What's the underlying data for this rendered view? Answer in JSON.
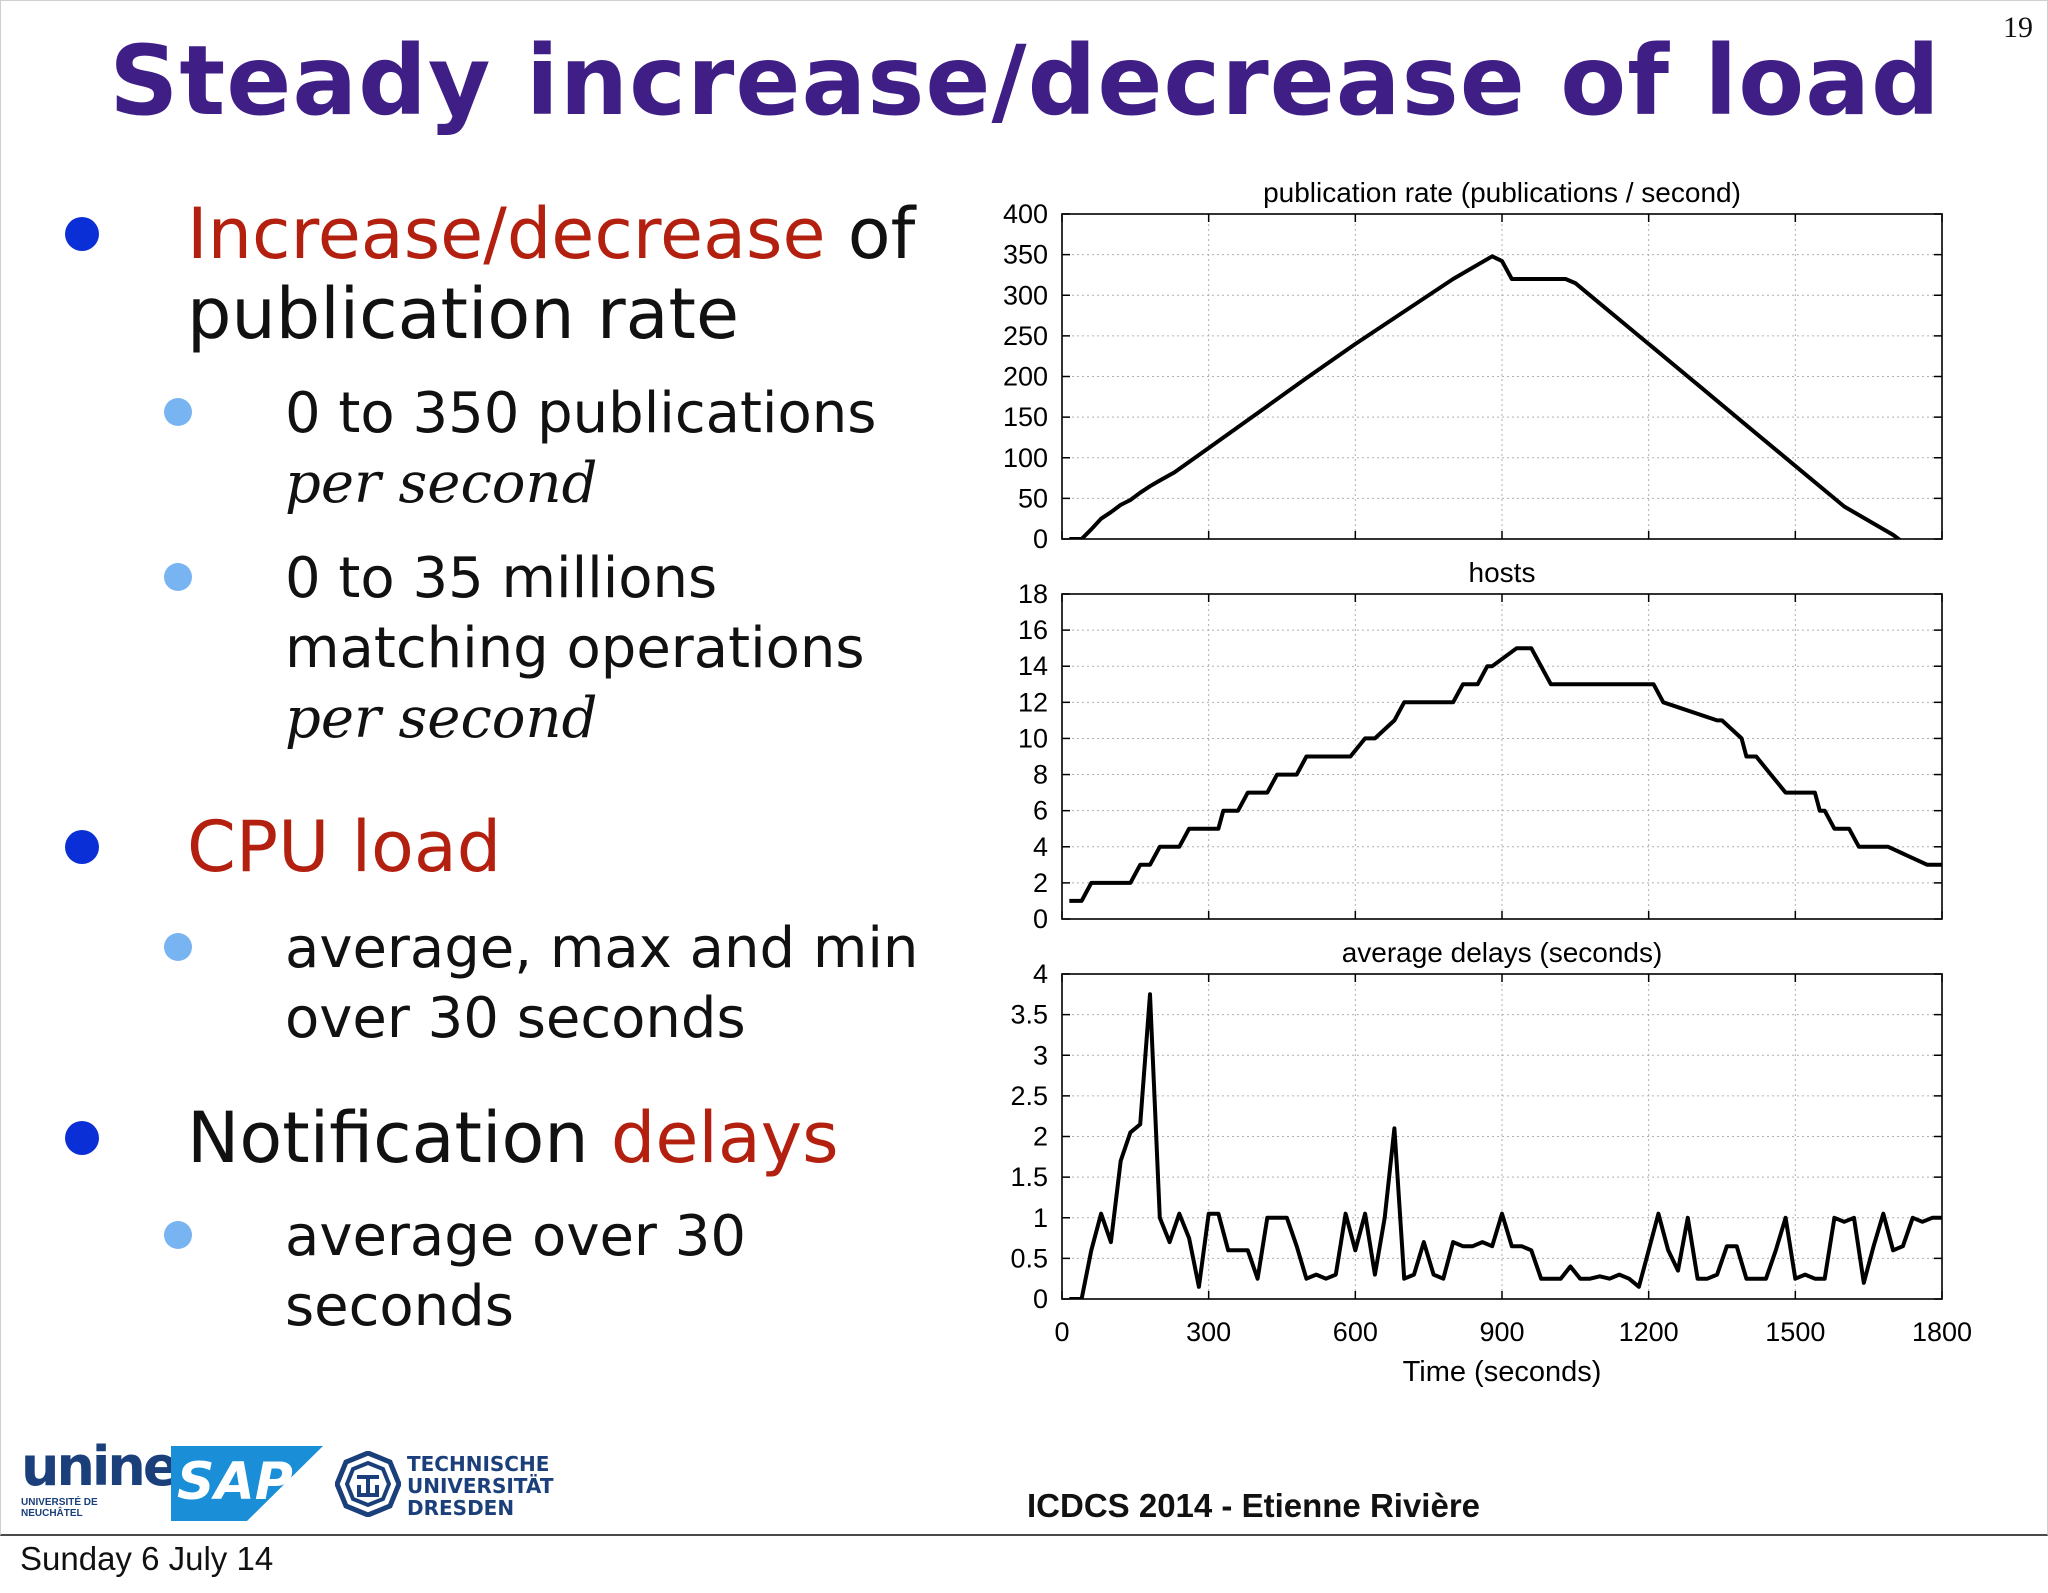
{
  "slide": {
    "number": "19",
    "title": "Steady increase/decrease of load",
    "footer": "ICDCS 2014 - Etienne Rivière",
    "date": "Sunday 6 July 14"
  },
  "bullets": {
    "b1_red": "Increase/decrease",
    "b1_rest": " of",
    "b1_line2": "publication rate",
    "s1_line1": "0 to 350 publications",
    "s1_line2": "per second",
    "s2_line1": "0 to 35 millions",
    "s2_line2": "matching operations",
    "s2_line3": "per second",
    "b2_red": "CPU load",
    "s3_line1": "average, max and min",
    "s3_line2": "over 30 seconds",
    "b3_black": "Notification ",
    "b3_red": "delays",
    "s4_line1": "average over 30",
    "s4_line2": "seconds"
  },
  "logos": {
    "unine": "unine",
    "unine_sub1": "UNIVERSITÉ DE",
    "unine_sub2": "NEUCHÂTEL",
    "sap": "SAP",
    "tud1": "TECHNISCHE",
    "tud2": "UNIVERSITÄT",
    "tud3": "DRESDEN"
  },
  "colors": {
    "title": "#3f1f86",
    "highlight": "#b3200f",
    "bullet1": "#0b2fd6",
    "bullet2": "#78b3f2",
    "sap": "#1a8fd8",
    "unine": "#1a3f7a"
  },
  "chart_data": [
    {
      "type": "line",
      "title": "publication rate (publications / second)",
      "xlabel": "",
      "ylabel": "",
      "xlim": [
        0,
        1800
      ],
      "ylim": [
        0,
        400
      ],
      "yticks": [
        "0",
        "50",
        "100",
        "150",
        "200",
        "250",
        "300",
        "350",
        "400"
      ],
      "xticks_shown": false,
      "grid": true,
      "x": [
        15,
        40,
        60,
        80,
        100,
        120,
        140,
        160,
        180,
        200,
        230,
        300,
        400,
        500,
        600,
        700,
        800,
        880,
        900,
        920,
        960,
        1000,
        1030,
        1050,
        1100,
        1200,
        1300,
        1400,
        1500,
        1600,
        1700,
        1800
      ],
      "y": [
        0,
        0,
        12,
        25,
        33,
        42,
        48,
        57,
        65,
        72,
        82,
        112,
        155,
        198,
        240,
        280,
        320,
        348,
        342,
        320,
        320,
        320,
        320,
        315,
        290,
        240,
        190,
        140,
        90,
        40,
        5,
        -40
      ]
    },
    {
      "type": "line",
      "title": "hosts",
      "xlabel": "",
      "ylabel": "",
      "xlim": [
        0,
        1800
      ],
      "ylim": [
        0,
        18
      ],
      "yticks": [
        "0",
        "2",
        "4",
        "6",
        "8",
        "10",
        "12",
        "14",
        "16",
        "18"
      ],
      "xticks_shown": false,
      "grid": true,
      "x": [
        15,
        40,
        60,
        140,
        160,
        180,
        200,
        240,
        260,
        320,
        330,
        360,
        380,
        420,
        440,
        480,
        500,
        520,
        580,
        590,
        620,
        640,
        680,
        700,
        720,
        790,
        800,
        820,
        850,
        870,
        880,
        930,
        960,
        1000,
        1050,
        1210,
        1230,
        1340,
        1350,
        1390,
        1400,
        1420,
        1450,
        1480,
        1500,
        1540,
        1550,
        1560,
        1580,
        1610,
        1630,
        1660,
        1690,
        1770,
        1780,
        1800
      ],
      "y": [
        1,
        1,
        2,
        2,
        3,
        3,
        4,
        4,
        5,
        5,
        6,
        6,
        7,
        7,
        8,
        8,
        9,
        9,
        9,
        9,
        10,
        10,
        11,
        12,
        12,
        12,
        12,
        13,
        13,
        14,
        14,
        15,
        15,
        13,
        13,
        13,
        12,
        11,
        11,
        10,
        9,
        9,
        8,
        7,
        7,
        7,
        6,
        6,
        5,
        5,
        4,
        4,
        4,
        3,
        3,
        3
      ]
    },
    {
      "type": "line",
      "title": "average delays (seconds)",
      "xlabel": "Time (seconds)",
      "ylabel": "",
      "xlim": [
        0,
        1800
      ],
      "ylim": [
        0,
        4
      ],
      "yticks": [
        "0",
        "0.5",
        "1",
        "1.5",
        "2",
        "2.5",
        "3",
        "3.5",
        "4"
      ],
      "xticks": [
        "0",
        "300",
        "600",
        "900",
        "1200",
        "1500",
        "1800"
      ],
      "grid": true,
      "x": [
        15,
        40,
        60,
        80,
        100,
        120,
        140,
        160,
        180,
        200,
        220,
        240,
        260,
        280,
        300,
        320,
        340,
        360,
        380,
        400,
        420,
        440,
        460,
        480,
        500,
        520,
        540,
        560,
        580,
        600,
        620,
        640,
        660,
        680,
        700,
        720,
        740,
        760,
        780,
        800,
        820,
        840,
        860,
        880,
        900,
        920,
        940,
        960,
        980,
        1000,
        1020,
        1040,
        1060,
        1080,
        1100,
        1120,
        1140,
        1160,
        1180,
        1200,
        1220,
        1240,
        1260,
        1280,
        1300,
        1320,
        1340,
        1360,
        1380,
        1400,
        1420,
        1440,
        1460,
        1480,
        1500,
        1520,
        1540,
        1560,
        1580,
        1600,
        1620,
        1640,
        1660,
        1680,
        1700,
        1720,
        1740,
        1760,
        1780,
        1800
      ],
      "y": [
        0,
        0,
        0.6,
        1.05,
        0.7,
        1.7,
        2.05,
        2.15,
        3.75,
        1.0,
        0.7,
        1.05,
        0.75,
        0.15,
        1.05,
        1.05,
        0.6,
        0.6,
        0.6,
        0.25,
        1.0,
        1.0,
        1.0,
        0.65,
        0.25,
        0.3,
        0.25,
        0.3,
        1.05,
        0.6,
        1.05,
        0.3,
        1.0,
        2.1,
        0.25,
        0.3,
        0.7,
        0.3,
        0.25,
        0.7,
        0.65,
        0.65,
        0.7,
        0.65,
        1.05,
        0.65,
        0.65,
        0.6,
        0.25,
        0.25,
        0.25,
        0.4,
        0.25,
        0.25,
        0.28,
        0.25,
        0.3,
        0.25,
        0.15,
        0.6,
        1.05,
        0.6,
        0.35,
        1.0,
        0.25,
        0.25,
        0.3,
        0.65,
        0.65,
        0.25,
        0.25,
        0.25,
        0.6,
        1.0,
        0.25,
        0.3,
        0.25,
        0.25,
        1.0,
        0.95,
        1.0,
        0.2,
        0.65,
        1.05,
        0.6,
        0.65,
        1.0,
        0.95,
        1.0,
        1.0
      ]
    }
  ]
}
